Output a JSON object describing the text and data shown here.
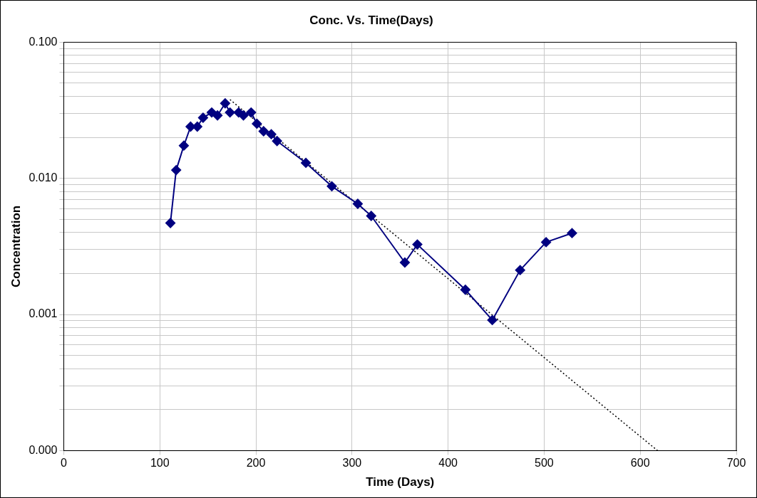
{
  "chart_data": {
    "type": "line",
    "title": "Conc. Vs. Time(Days)",
    "xlabel": "Time (Days)",
    "ylabel": "Concentration",
    "log": "y",
    "grid": true,
    "legend": false,
    "marker": "diamond",
    "line_style": "solid",
    "xlim": [
      0,
      700
    ],
    "xticks": [
      0,
      100,
      200,
      300,
      400,
      500,
      600,
      700
    ],
    "ylim": [
      0.0001,
      0.1
    ],
    "yticks": [
      {
        "value": 0.0001,
        "label": "0.000"
      },
      {
        "value": 0.0002,
        "label": null
      },
      {
        "value": 0.0003,
        "label": null
      },
      {
        "value": 0.0004,
        "label": null
      },
      {
        "value": 0.0005,
        "label": null
      },
      {
        "value": 0.0006,
        "label": null
      },
      {
        "value": 0.0007,
        "label": null
      },
      {
        "value": 0.0008,
        "label": null
      },
      {
        "value": 0.0009,
        "label": null
      },
      {
        "value": 0.001,
        "label": "0.001"
      },
      {
        "value": 0.002,
        "label": null
      },
      {
        "value": 0.003,
        "label": null
      },
      {
        "value": 0.004,
        "label": null
      },
      {
        "value": 0.005,
        "label": null
      },
      {
        "value": 0.006,
        "label": null
      },
      {
        "value": 0.007,
        "label": null
      },
      {
        "value": 0.008,
        "label": null
      },
      {
        "value": 0.009,
        "label": null
      },
      {
        "value": 0.01,
        "label": "0.010"
      },
      {
        "value": 0.02,
        "label": null
      },
      {
        "value": 0.03,
        "label": null
      },
      {
        "value": 0.04,
        "label": null
      },
      {
        "value": 0.05,
        "label": null
      },
      {
        "value": 0.06,
        "label": null
      },
      {
        "value": 0.07,
        "label": null
      },
      {
        "value": 0.08,
        "label": null
      },
      {
        "value": 0.09,
        "label": null
      },
      {
        "value": 0.1,
        "label": "0.100"
      }
    ],
    "series": [
      {
        "color": "#000080",
        "x": [
          111,
          117,
          125,
          132,
          139,
          145,
          154,
          160,
          168,
          173,
          182,
          187,
          195,
          201,
          208,
          216,
          222,
          252,
          279,
          306,
          320,
          355,
          368,
          418,
          446,
          475,
          502,
          529
        ],
        "values": [
          0.0047,
          0.0115,
          0.0174,
          0.024,
          0.024,
          0.0279,
          0.0305,
          0.029,
          0.0356,
          0.0305,
          0.0305,
          0.029,
          0.0305,
          0.0252,
          0.0222,
          0.0211,
          0.0188,
          0.013,
          0.00875,
          0.0065,
          0.0053,
          0.00241,
          0.00327,
          0.00152,
          0.00091,
          0.00212,
          0.0034,
          0.00396
        ]
      },
      {
        "type": "line",
        "color": "#000000",
        "line_style": "dotted",
        "marker": "none",
        "x": [
          173,
          618
        ],
        "values": [
          0.0379,
          0.0001
        ]
      }
    ]
  }
}
